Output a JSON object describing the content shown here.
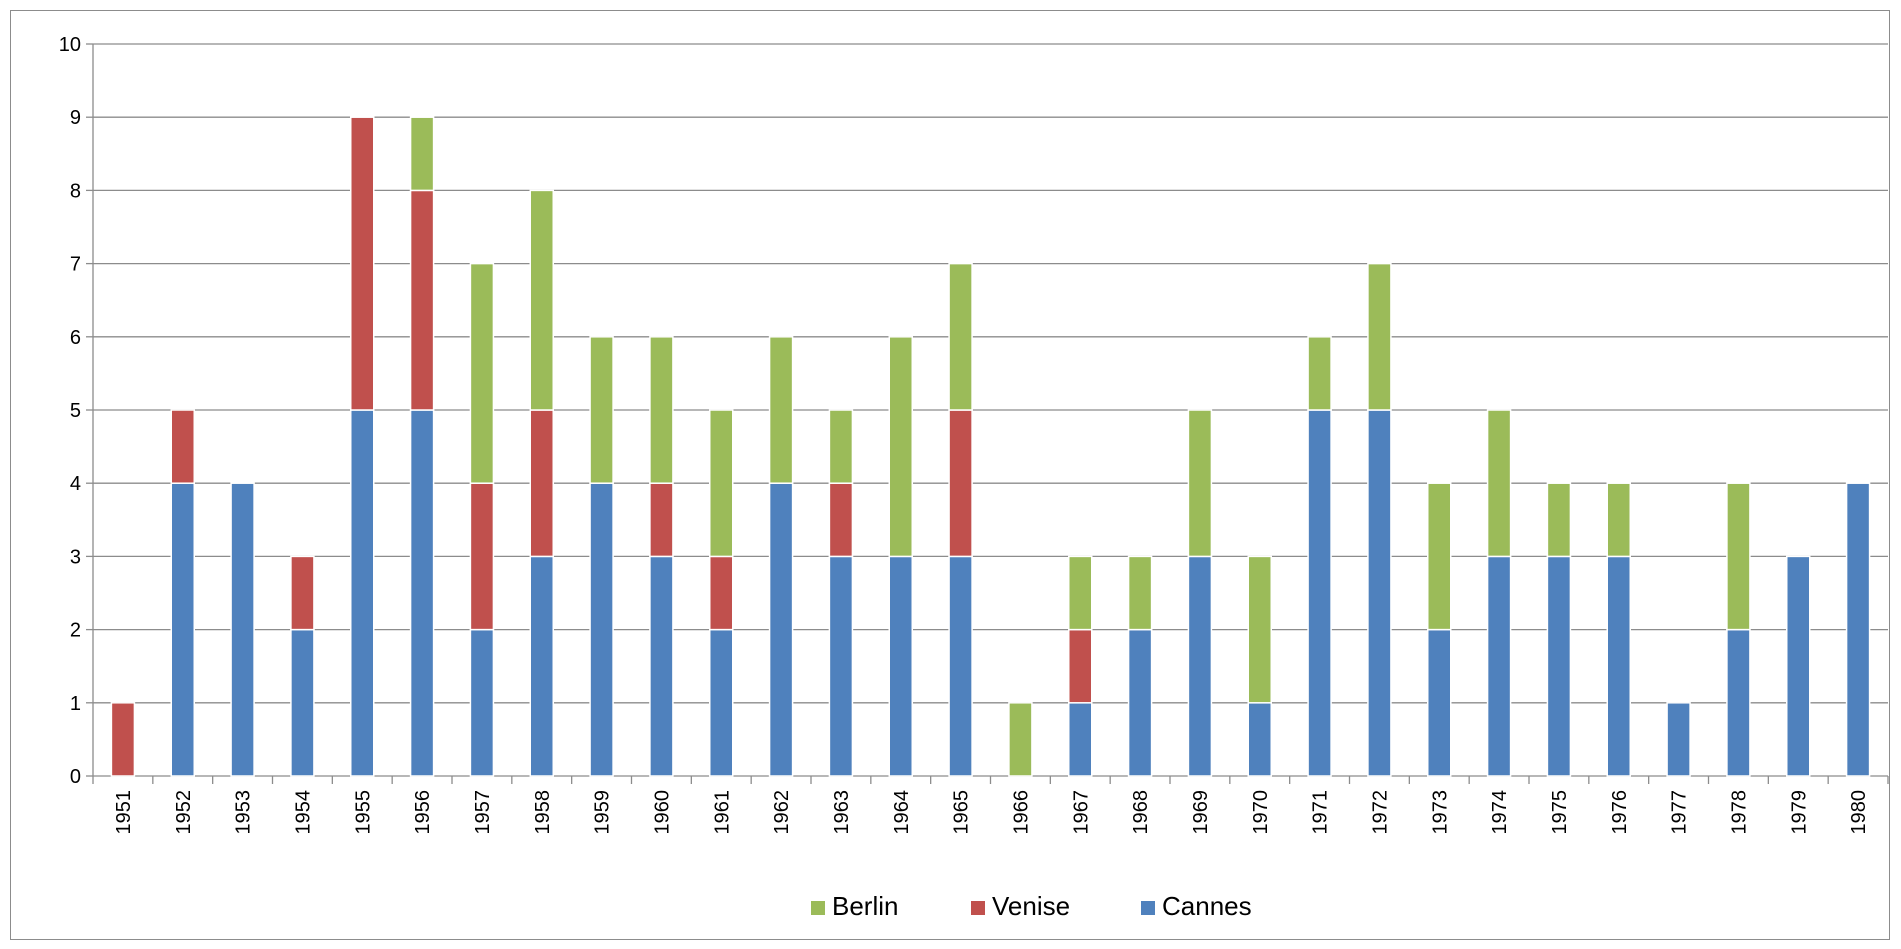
{
  "chart_data": {
    "type": "bar",
    "stacked": true,
    "title": "",
    "xlabel": "",
    "ylabel": "",
    "ylim": [
      0,
      10
    ],
    "yticks": [
      0,
      1,
      2,
      3,
      4,
      5,
      6,
      7,
      8,
      9,
      10
    ],
    "grid": true,
    "legend_position": "bottom",
    "categories": [
      "1951",
      "1952",
      "1953",
      "1954",
      "1955",
      "1956",
      "1957",
      "1958",
      "1959",
      "1960",
      "1961",
      "1962",
      "1963",
      "1964",
      "1965",
      "1966",
      "1967",
      "1968",
      "1969",
      "1970",
      "1971",
      "1972",
      "1973",
      "1974",
      "1975",
      "1976",
      "1977",
      "1978",
      "1979",
      "1980"
    ],
    "series": [
      {
        "name": "Cannes",
        "color": "#4f81bd",
        "values": [
          0,
          4,
          4,
          2,
          5,
          5,
          2,
          3,
          4,
          3,
          2,
          4,
          3,
          3,
          3,
          0,
          1,
          2,
          3,
          1,
          5,
          5,
          2,
          3,
          3,
          3,
          1,
          2,
          3,
          4
        ]
      },
      {
        "name": "Venise",
        "color": "#c0504d",
        "values": [
          1,
          1,
          0,
          1,
          4,
          3,
          2,
          2,
          0,
          1,
          1,
          0,
          1,
          0,
          2,
          0,
          1,
          0,
          0,
          0,
          0,
          0,
          0,
          0,
          0,
          0,
          0,
          0,
          0,
          0
        ]
      },
      {
        "name": "Berlin",
        "color": "#9bbb59",
        "values": [
          0,
          0,
          0,
          0,
          0,
          1,
          3,
          3,
          2,
          2,
          2,
          2,
          1,
          3,
          2,
          1,
          1,
          1,
          2,
          2,
          1,
          2,
          2,
          2,
          1,
          1,
          0,
          2,
          0,
          0
        ]
      }
    ],
    "legend_order": [
      "Berlin",
      "Venise",
      "Cannes"
    ]
  }
}
